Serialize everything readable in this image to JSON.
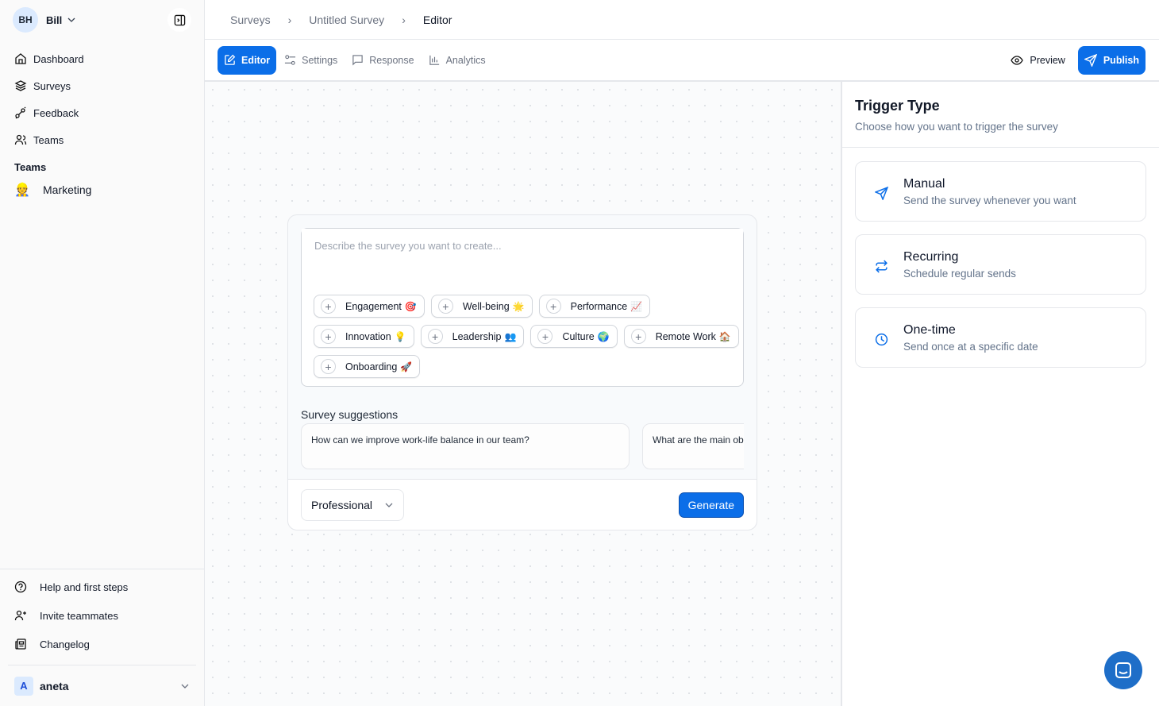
{
  "sidebar": {
    "user_initials": "BH",
    "user_name": "Bill",
    "nav": [
      {
        "label": "Dashboard",
        "icon": "home-icon"
      },
      {
        "label": "Surveys",
        "icon": "layers-icon"
      },
      {
        "label": "Feedback",
        "icon": "feedback-icon"
      },
      {
        "label": "Teams",
        "icon": "users-icon"
      }
    ],
    "teams_heading": "Teams",
    "teams": [
      {
        "label": "Marketing",
        "emoji": "👷"
      }
    ],
    "bottom": [
      {
        "label": "Help and first steps",
        "icon": "help-circle-icon"
      },
      {
        "label": "Invite teammates",
        "icon": "user-plus-icon"
      },
      {
        "label": "Changelog",
        "icon": "newspaper-icon"
      }
    ],
    "account": {
      "initial": "A",
      "name": "aneta"
    }
  },
  "breadcrumb": [
    "Surveys",
    "Untitled Survey",
    "Editor"
  ],
  "tabs": [
    {
      "label": "Editor",
      "active": true
    },
    {
      "label": "Settings"
    },
    {
      "label": "Response"
    },
    {
      "label": "Analytics"
    }
  ],
  "actions": {
    "preview": "Preview",
    "publish": "Publish"
  },
  "accent": "#0b6ee8",
  "editor": {
    "placeholder": "Describe the survey you want to create...",
    "chips": [
      {
        "label": "Engagement",
        "emoji": "🎯"
      },
      {
        "label": "Well-being",
        "emoji": "🌟"
      },
      {
        "label": "Performance",
        "emoji": "📈"
      },
      {
        "label": "Innovation",
        "emoji": "💡"
      },
      {
        "label": "Leadership",
        "emoji": "👥"
      },
      {
        "label": "Culture",
        "emoji": "🌍"
      },
      {
        "label": "Remote Work",
        "emoji": "🏠"
      },
      {
        "label": "Onboarding",
        "emoji": "🚀"
      }
    ],
    "suggestions_title": "Survey suggestions",
    "suggestions": [
      "How can we improve work-life balance in our team?",
      "What are the main ob"
    ],
    "tone": "Professional",
    "generate": "Generate"
  },
  "trigger": {
    "title": "Trigger Type",
    "subtitle": "Choose how you want to trigger the survey",
    "options": [
      {
        "title": "Manual",
        "desc": "Send the survey whenever you want",
        "icon": "send-icon"
      },
      {
        "title": "Recurring",
        "desc": "Schedule regular sends",
        "icon": "repeat-icon"
      },
      {
        "title": "One-time",
        "desc": "Send once at a specific date",
        "icon": "clock-icon"
      }
    ]
  }
}
